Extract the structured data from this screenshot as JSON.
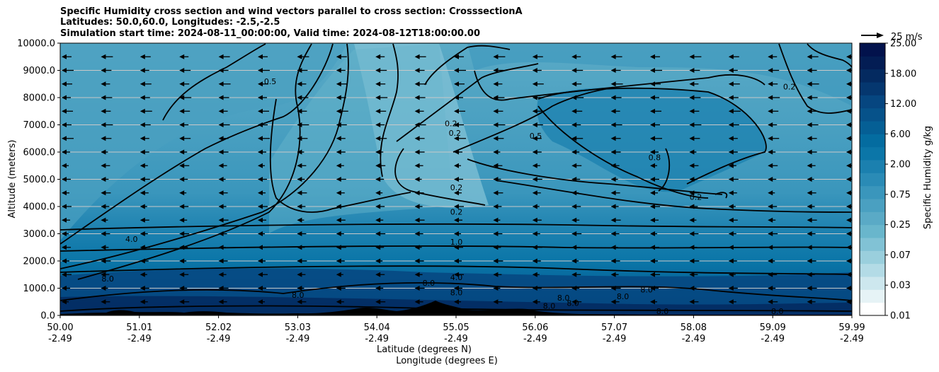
{
  "chart_data": {
    "type": "heatmap",
    "title_lines": [
      "Specific Humidity cross section and wind vectors parallel to cross section: CrosssectionA",
      "Latitudes: 50.0,60.0, Longitudes: -2.5,-2.5",
      "Simulation start time: 2024-08-11_00:00:00, Valid time: 2024-08-12T18:00:00.00"
    ],
    "ylabel": "Altitude (meters)",
    "xlabel_lat": "Latitude (degrees N)",
    "xlabel_lon": "Longitude (degrees E)",
    "ylim": [
      0,
      10000
    ],
    "y_ticks": [
      "0.0",
      "1000.0",
      "2000.0",
      "3000.0",
      "4000.0",
      "5000.0",
      "6000.0",
      "7000.0",
      "8000.0",
      "9000.0",
      "10000.0"
    ],
    "x_ticks_lat": [
      "50.00",
      "51.01",
      "52.02",
      "53.03",
      "54.04",
      "55.05",
      "56.06",
      "57.07",
      "58.08",
      "59.09",
      "59.99"
    ],
    "x_ticks_lon": [
      "-2.49",
      "-2.49",
      "-2.49",
      "-2.49",
      "-2.49",
      "-2.49",
      "-2.49",
      "-2.49",
      "-2.49",
      "-2.49",
      "-2.49"
    ],
    "colorbar_label": "Specific Humidity g/kg",
    "colorbar_ticks": [
      "0.01",
      "0.03",
      "0.07",
      "0.25",
      "0.75",
      "2.00",
      "6.00",
      "12.00",
      "18.00",
      "25.00"
    ],
    "colorbar_colors": [
      "#ffffff",
      "#e6f3f6",
      "#cde7ee",
      "#b3dbe6",
      "#9acfdd",
      "#81c2d5",
      "#69b6cc",
      "#5aaac6",
      "#4aa0c1",
      "#3a96bc",
      "#2a8bb6",
      "#1b80af",
      "#0b76a8",
      "#046ca0",
      "#055f95",
      "#06528a",
      "#064680",
      "#05376f",
      "#042a60",
      "#031d54",
      "#02124c"
    ],
    "quiver_key_label": "25 m/s",
    "contour_labels": [
      {
        "text": "0.5",
        "lat": 52.65,
        "alt": 8600
      },
      {
        "text": "0.2",
        "lat": 54.93,
        "alt": 7050
      },
      {
        "text": "0.2",
        "lat": 54.98,
        "alt": 6700
      },
      {
        "text": "0.5",
        "lat": 56.0,
        "alt": 6600
      },
      {
        "text": "0.2",
        "lat": 58.02,
        "alt": 4350
      },
      {
        "text": "0.2",
        "lat": 59.2,
        "alt": 8400
      },
      {
        "text": "0.8",
        "lat": 57.5,
        "alt": 5800
      },
      {
        "text": "0.2",
        "lat": 55.0,
        "alt": 4700
      },
      {
        "text": "0.2",
        "lat": 55.0,
        "alt": 3800
      },
      {
        "text": "1.0",
        "lat": 55.0,
        "alt": 2700
      },
      {
        "text": "4.0",
        "lat": 55.0,
        "alt": 1400
      },
      {
        "text": "8.0",
        "lat": 55.0,
        "alt": 850
      },
      {
        "text": "4.0",
        "lat": 50.9,
        "alt": 2800
      },
      {
        "text": "8.0",
        "lat": 50.6,
        "alt": 1350
      },
      {
        "text": "8.0",
        "lat": 53.0,
        "alt": 750
      },
      {
        "text": "8.0",
        "lat": 54.65,
        "alt": 1200
      },
      {
        "text": "8.0",
        "lat": 56.17,
        "alt": 350
      },
      {
        "text": "8.0",
        "lat": 56.35,
        "alt": 650
      },
      {
        "text": "8.0",
        "lat": 56.47,
        "alt": 450
      },
      {
        "text": "8.0",
        "lat": 57.1,
        "alt": 700
      },
      {
        "text": "8.0",
        "lat": 57.4,
        "alt": 950
      },
      {
        "text": "8.0",
        "lat": 57.6,
        "alt": 150
      },
      {
        "text": "8.0",
        "lat": 59.05,
        "alt": 150
      }
    ]
  }
}
